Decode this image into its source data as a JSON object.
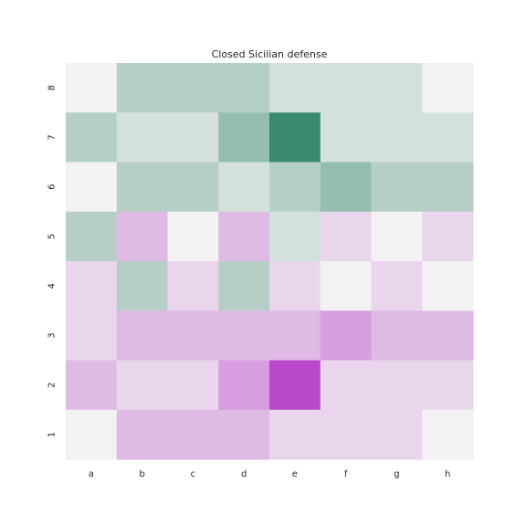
{
  "chart_data": {
    "type": "heatmap",
    "title": "Closed Sicilian defense",
    "xlabel": "",
    "ylabel": "",
    "x_categories": [
      "a",
      "b",
      "c",
      "d",
      "e",
      "f",
      "g",
      "h"
    ],
    "y_categories": [
      "8",
      "7",
      "6",
      "5",
      "4",
      "3",
      "2",
      "1"
    ],
    "values": [
      [
        0,
        -2,
        -2,
        -2,
        -1,
        -1,
        -1,
        0
      ],
      [
        -2,
        -1,
        -1,
        -3,
        -6,
        -1,
        -1,
        -1
      ],
      [
        0,
        -2,
        -2,
        -1,
        -2,
        -3,
        -2,
        -2
      ],
      [
        -2,
        2,
        0,
        2,
        -1,
        1,
        0,
        1
      ],
      [
        1,
        -2,
        1,
        -2,
        1,
        0,
        1,
        0
      ],
      [
        1,
        2,
        2,
        2,
        2,
        3,
        2,
        2
      ],
      [
        2,
        1,
        1,
        3,
        6,
        1,
        1,
        1
      ],
      [
        0,
        2,
        2,
        2,
        1,
        1,
        1,
        0
      ]
    ],
    "vmin": -6,
    "vmax": 6,
    "colors": {
      "negative_max": "#3a8a6e",
      "center": "#f2f2f2",
      "positive_max": "#ba4acb"
    },
    "grid": false,
    "colorbar": false
  }
}
